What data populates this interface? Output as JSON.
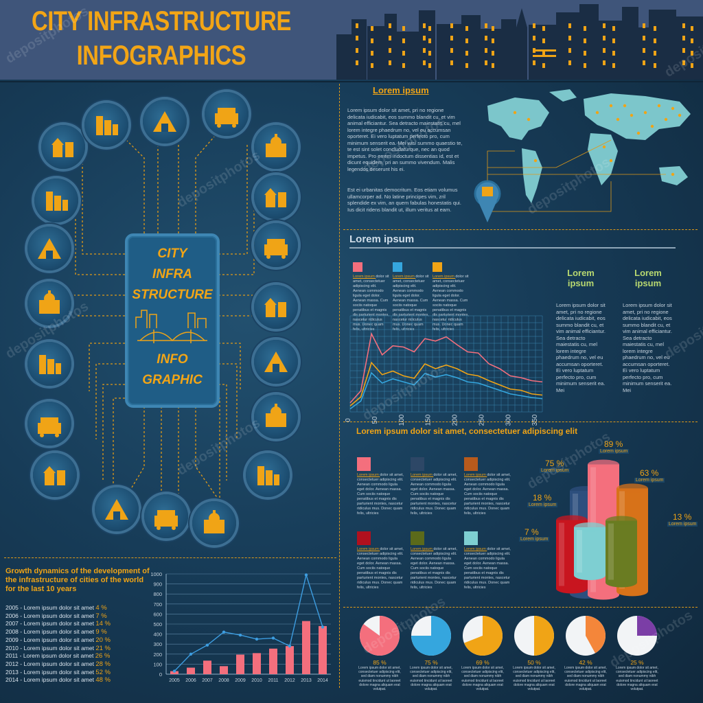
{
  "title": {
    "line1": "CITY INFRASTRUCTURE",
    "line2": "INFOGRAPHICS"
  },
  "center_panel": {
    "lines": [
      "CITY",
      "INFRA",
      "STRUCTURE",
      "INFO",
      "GRAPHIC"
    ]
  },
  "icons": [
    "houses-icon",
    "family-icon",
    "skyscrapers-icon",
    "antenna-satellite-icon",
    "factory-oil-icon",
    "office-tower-icon",
    "crane-building-icon",
    "power-plant-icon",
    "museum-icon",
    "bus-car-icon",
    "truck-icon",
    "temple-icon",
    "mosque-icon",
    "pyramids-icon",
    "cottage-icon",
    "apartments-icon",
    "cathedral-icon",
    "train-plane-icon",
    "highrise-icon",
    "stadium-icon"
  ],
  "map_section": {
    "heading": "Lorem ipsum",
    "para1": "Lorem ipsum dolor sit amet, pri no regione delicata iudicabit, eos summo blandit cu, et vim animal efficiantur. Sea detracto maiestatis cu, mel lorem integre phaedrum no, vel eu accumsan oporteret. Ei vero luptatum perfecto pro, cum minimum senserit ea. Mei wisi summo quaestio te, te est sint solet concludaturque, nec an quod impetus. Pro errem indoctum dissentias id, est et dicunt equidem, pri an summo vivendum. Malis legendos deserunt his ei.",
    "para2": "Est ei urbanitas democritum. Eos etiam volumus ullamcorper ad. No latine principes vim, zril splendide ex vim, an quem fabulas honestatis qui. Ius dicit ridens blandit ut, illum veritus at eam."
  },
  "line_section": {
    "heading": "Lorem ipsum",
    "legend_title": "Lorem ipsum",
    "legend_text": "dolor sit amet, consectetuer adipiscing elit. Aenean commodo ligula eget dolor. Aenean massa. Cum sociis natoque penatibus et magnis dis parturient montes, nascetur ridiculus mus. Donec quam felis, ultricies",
    "col1_title": "Lorem ipsum",
    "col2_title": "Lorem ipsum",
    "col_text": "Lorem ipsum dolor sit amet, pri no regione delicata iudicabit, eos summo blandit cu, et vim animal efficiantur. Sea detracto maiestatis cu, mel lorem integre phaedrum no, vel eu accumsan oporteret. Ei vero luptatum perfecto pro, cum minimum senserit ea. Mei"
  },
  "cyl_section": {
    "heading": "Lorem ipsum dolor sit amet, consectetuer adipiscing elit",
    "legend_title": "Lorem ipsum",
    "legend_text": "dolor sit amet, consectetuer adipiscing elit. Aenean commodo ligula eget dolor. Aenean massa. Cum sociis natoque penatibus et magnis dis parturient montes, nascetur ridiculus mus. Donec quam felis, ultricies",
    "label_sub": "Lorem ipsum"
  },
  "growth_section": {
    "heading": "Growth dynamics of the development of the  infrastructure of cities of the world for the last 10 years",
    "rows": [
      {
        "year": "2005",
        "text": "- Lorem ipsum dolor sit amet",
        "pct": "4 %"
      },
      {
        "year": "2006",
        "text": "- Lorem ipsum dolor sit amet",
        "pct": "7 %"
      },
      {
        "year": "2007",
        "text": "- Lorem ipsum dolor sit amet",
        "pct": "14 %"
      },
      {
        "year": "2008",
        "text": "- Lorem ipsum dolor sit amet",
        "pct": "9 %"
      },
      {
        "year": "2009",
        "text": "- Lorem ipsum dolor sit amet",
        "pct": "20 %"
      },
      {
        "year": "2010",
        "text": "- Lorem ipsum dolor sit amet",
        "pct": "21 %"
      },
      {
        "year": "2011",
        "text": "- Lorem ipsum dolor sit amet",
        "pct": "26 %"
      },
      {
        "year": "2012",
        "text": "- Lorem ipsum dolor sit amet",
        "pct": "28 %"
      },
      {
        "year": "2013",
        "text": "- Lorem ipsum dolor sit amet",
        "pct": "52 %"
      },
      {
        "year": "2014",
        "text": "- Lorem ipsum dolor sit amet",
        "pct": "48 %"
      }
    ]
  },
  "pie_section": {
    "text": "Lorem ipsum dolor sit amet, consectetuer adipiscing elit, sed diam nonummy nibh euismod tincidunt ut laoreet dolore magna aliquam erat volutpat."
  },
  "watermark": "depositphotos",
  "colors": {
    "orange": "#f0a416",
    "pink": "#f46f7d",
    "blue": "#35a6de",
    "yellow": "#f0a416",
    "teal": "#7ecfd2"
  },
  "chart_data": [
    {
      "type": "line",
      "x": [
        0,
        20,
        40,
        60,
        80,
        100,
        120,
        140,
        160,
        180,
        200,
        220,
        240,
        260,
        280,
        300,
        320,
        340,
        360
      ],
      "series": [
        {
          "values": [
            15,
            35,
            130,
            95,
            110,
            108,
            100,
            122,
            118,
            125,
            112,
            100,
            98,
            80,
            72,
            60,
            57,
            52,
            50
          ]
        },
        {
          "values": [
            10,
            25,
            82,
            62,
            68,
            60,
            56,
            80,
            72,
            78,
            72,
            63,
            60,
            52,
            45,
            38,
            36,
            30,
            28
          ]
        },
        {
          "values": [
            5,
            18,
            65,
            48,
            55,
            50,
            45,
            64,
            58,
            62,
            57,
            50,
            48,
            42,
            36,
            30,
            27,
            24,
            22
          ]
        }
      ],
      "xticks": [
        "0",
        "50",
        "100",
        "150",
        "200",
        "250",
        "300",
        "350"
      ],
      "xlim": [
        0,
        360
      ],
      "ylim": [
        0,
        160
      ]
    },
    {
      "type": "bar",
      "categories": [
        "7 %",
        "18 %",
        "75 %",
        "89 %",
        "63 %",
        "13 %"
      ],
      "values": [
        7,
        18,
        75,
        89,
        63,
        13
      ]
    },
    {
      "type": "bar",
      "categories": [
        "2005",
        "2006",
        "2007",
        "2008",
        "2009",
        "2010",
        "2011",
        "2012",
        "2013",
        "2014"
      ],
      "values": [
        30,
        65,
        135,
        80,
        195,
        210,
        255,
        280,
        530,
        480
      ],
      "line_values": [
        30,
        200,
        290,
        420,
        390,
        350,
        360,
        280,
        990,
        470
      ],
      "yticks": [
        "0",
        "100",
        "200",
        "300",
        "400",
        "500",
        "600",
        "700",
        "800",
        "900",
        "1000"
      ],
      "ylim": [
        0,
        1000
      ]
    },
    {
      "type": "pie",
      "labels": [
        "85 %",
        "75 %",
        "69 %",
        "50 %",
        "42 %",
        "25 %"
      ],
      "values": [
        85,
        75,
        69,
        50,
        42,
        25
      ]
    }
  ]
}
